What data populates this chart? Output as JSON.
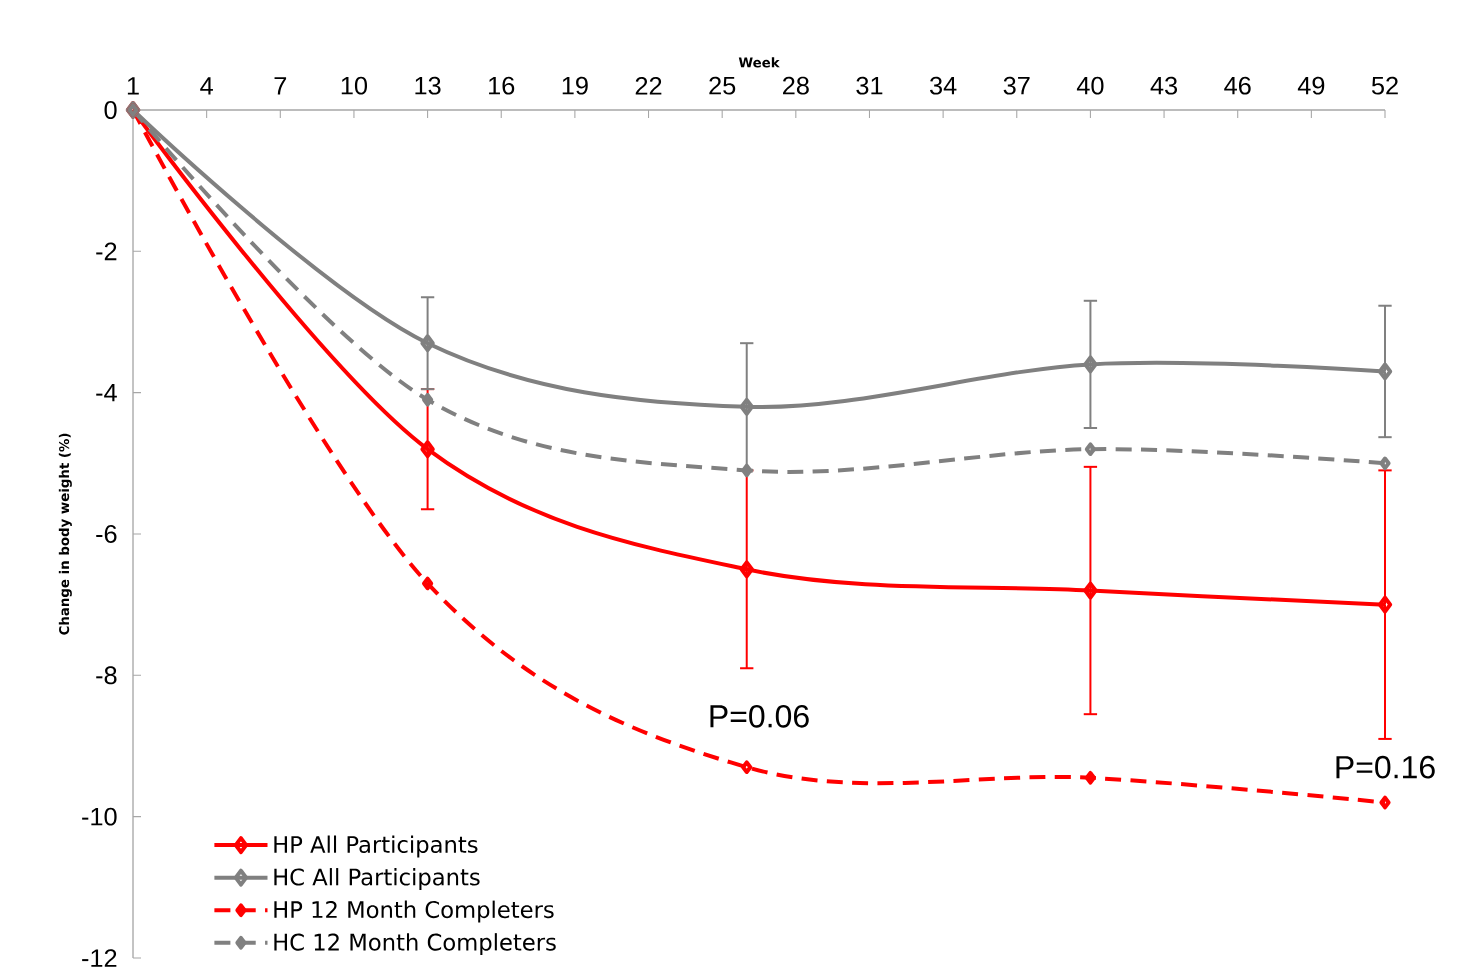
{
  "chart_data": {
    "type": "line",
    "xlabel": "Week",
    "ylabel": "Change in body weight (%)",
    "x": [
      1,
      13,
      26,
      40,
      52
    ],
    "xlim": [
      1,
      52
    ],
    "ylim": [
      -12,
      0
    ],
    "xticks": [
      1,
      4,
      7,
      10,
      13,
      16,
      19,
      22,
      25,
      28,
      31,
      34,
      37,
      40,
      43,
      46,
      49,
      52
    ],
    "yticks": [
      0,
      -2,
      -4,
      -6,
      -8,
      -10,
      -12
    ],
    "marker": "diamond",
    "legend": "bottom left",
    "series": [
      {
        "name": "HP All Participants",
        "color": "#ff0000",
        "line_style": "solid",
        "values": [
          0,
          -4.8,
          -6.5,
          -6.8,
          -7.0
        ],
        "errors": [
          null,
          0.85,
          1.4,
          1.75,
          1.9
        ]
      },
      {
        "name": "HC All Participants",
        "color": "#808080",
        "line_style": "solid",
        "values": [
          0,
          -3.3,
          -4.2,
          -3.6,
          -3.7
        ],
        "errors": [
          null,
          0.65,
          0.9,
          0.9,
          0.93
        ]
      },
      {
        "name": "HP 12 Month Completers",
        "color": "#ff0000",
        "line_style": "dashed",
        "values": [
          0,
          -6.7,
          -9.3,
          -9.45,
          -9.8
        ]
      },
      {
        "name": "HC 12 Month Completers",
        "color": "#808080",
        "line_style": "dashed",
        "values": [
          0,
          -4.1,
          -5.1,
          -4.8,
          -5.0
        ]
      }
    ],
    "annotations": [
      "P=0.06",
      "P=0.16"
    ]
  }
}
